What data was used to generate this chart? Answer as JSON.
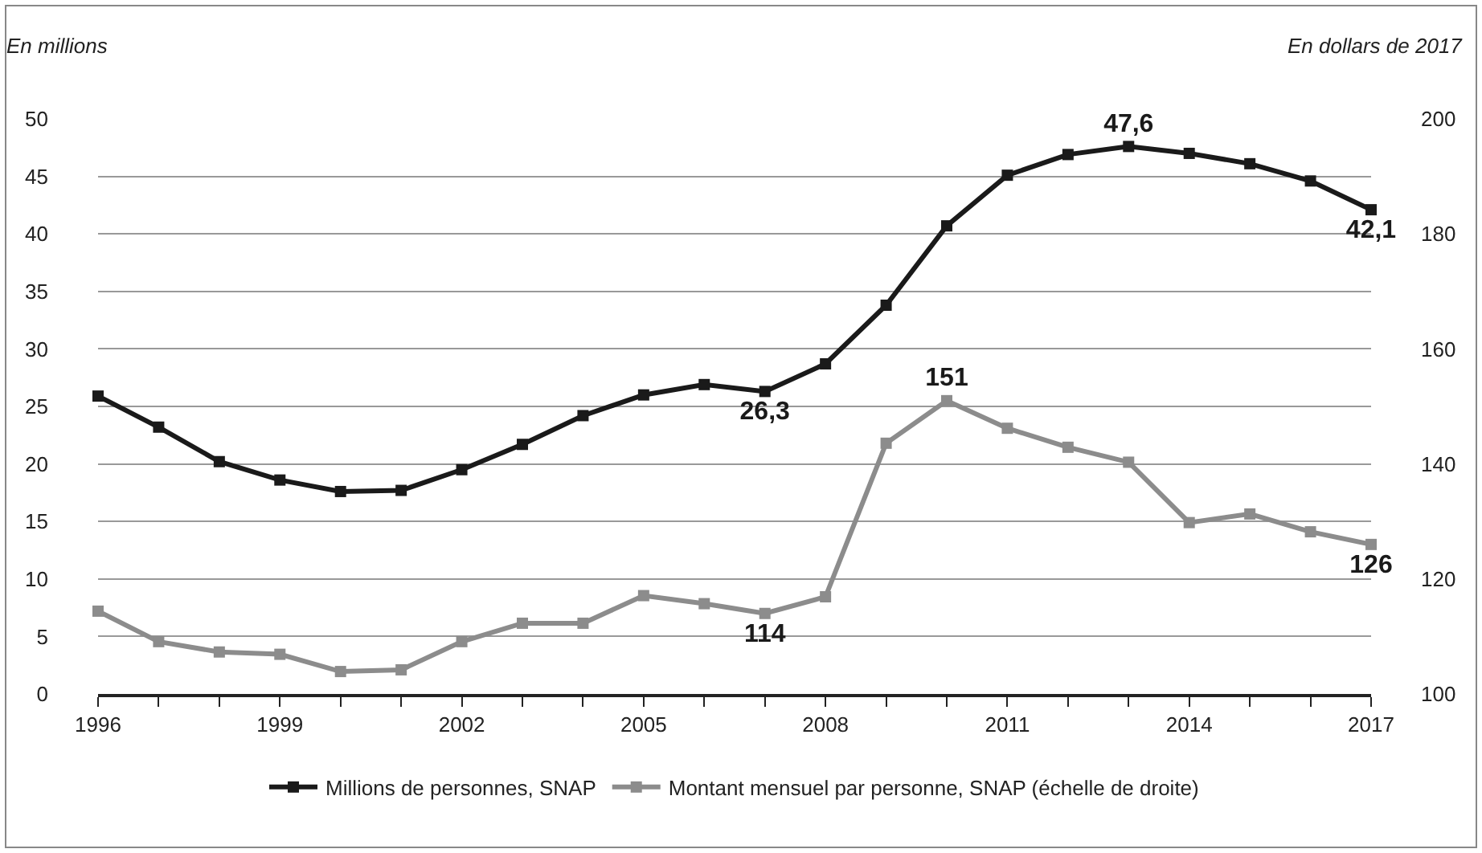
{
  "chart_data": {
    "type": "line",
    "ylabel": "En millions",
    "y2label": "En dollars de 2017",
    "x": [
      1996,
      1997,
      1998,
      1999,
      2000,
      2001,
      2002,
      2003,
      2004,
      2005,
      2006,
      2007,
      2008,
      2009,
      2010,
      2011,
      2012,
      2013,
      2014,
      2015,
      2016,
      2017
    ],
    "series": [
      {
        "name": "Millions de personnes, SNAP",
        "color": "#1a1a1a",
        "values": [
          25.9,
          23.2,
          20.2,
          18.6,
          17.6,
          17.7,
          19.5,
          21.7,
          24.2,
          26.0,
          26.9,
          26.3,
          28.7,
          33.8,
          40.7,
          45.1,
          46.9,
          47.6,
          47.0,
          46.1,
          44.6,
          42.1
        ],
        "value_labels": [
          null,
          null,
          null,
          null,
          null,
          null,
          null,
          null,
          null,
          null,
          null,
          "26,3",
          null,
          null,
          null,
          null,
          null,
          "47,6",
          null,
          null,
          null,
          "42,1"
        ]
      },
      {
        "name": "Montant mensuel par personne, SNAP (échelle de droite)",
        "color": "#8c8c8c",
        "axis": "y2",
        "values": [
          114.4,
          109.1,
          107.3,
          106.9,
          103.9,
          104.2,
          109.1,
          112.3,
          112.3,
          117.1,
          115.7,
          114,
          116.9,
          143.6,
          151,
          146.2,
          142.9,
          140.3,
          129.8,
          131.3,
          128.2,
          126
        ],
        "value_labels": [
          null,
          null,
          null,
          null,
          null,
          null,
          null,
          null,
          null,
          null,
          null,
          "114",
          null,
          null,
          "151",
          null,
          null,
          null,
          null,
          null,
          null,
          "126"
        ]
      }
    ],
    "xlim": [
      1996,
      2017
    ],
    "xticks": [
      1996,
      {
        "value": 1997,
        "label": null
      },
      {
        "value": 1998,
        "label": null
      },
      1999,
      {
        "value": 2000,
        "label": null
      },
      {
        "value": 2001,
        "label": null
      },
      2002,
      {
        "value": 2003,
        "label": null
      },
      {
        "value": 2004,
        "label": null
      },
      2005,
      {
        "value": 2006,
        "label": null
      },
      {
        "value": 2007,
        "label": null
      },
      2008,
      {
        "value": 2009,
        "label": null
      },
      {
        "value": 2010,
        "label": null
      },
      2011,
      {
        "value": 2012,
        "label": null
      },
      {
        "value": 2013,
        "label": null
      },
      2014,
      {
        "value": 2015,
        "label": null
      },
      {
        "value": 2016,
        "label": null
      },
      2017
    ],
    "ylim": [
      0,
      50
    ],
    "yticks": [
      0,
      5,
      10,
      15,
      20,
      25,
      30,
      35,
      40,
      45,
      50
    ],
    "y2lim": [
      100,
      200
    ],
    "y2ticks": [
      100,
      120,
      140,
      160,
      180,
      200
    ],
    "grid": "y",
    "legend": "bottom",
    "marker": "square",
    "line_style": "solid"
  }
}
